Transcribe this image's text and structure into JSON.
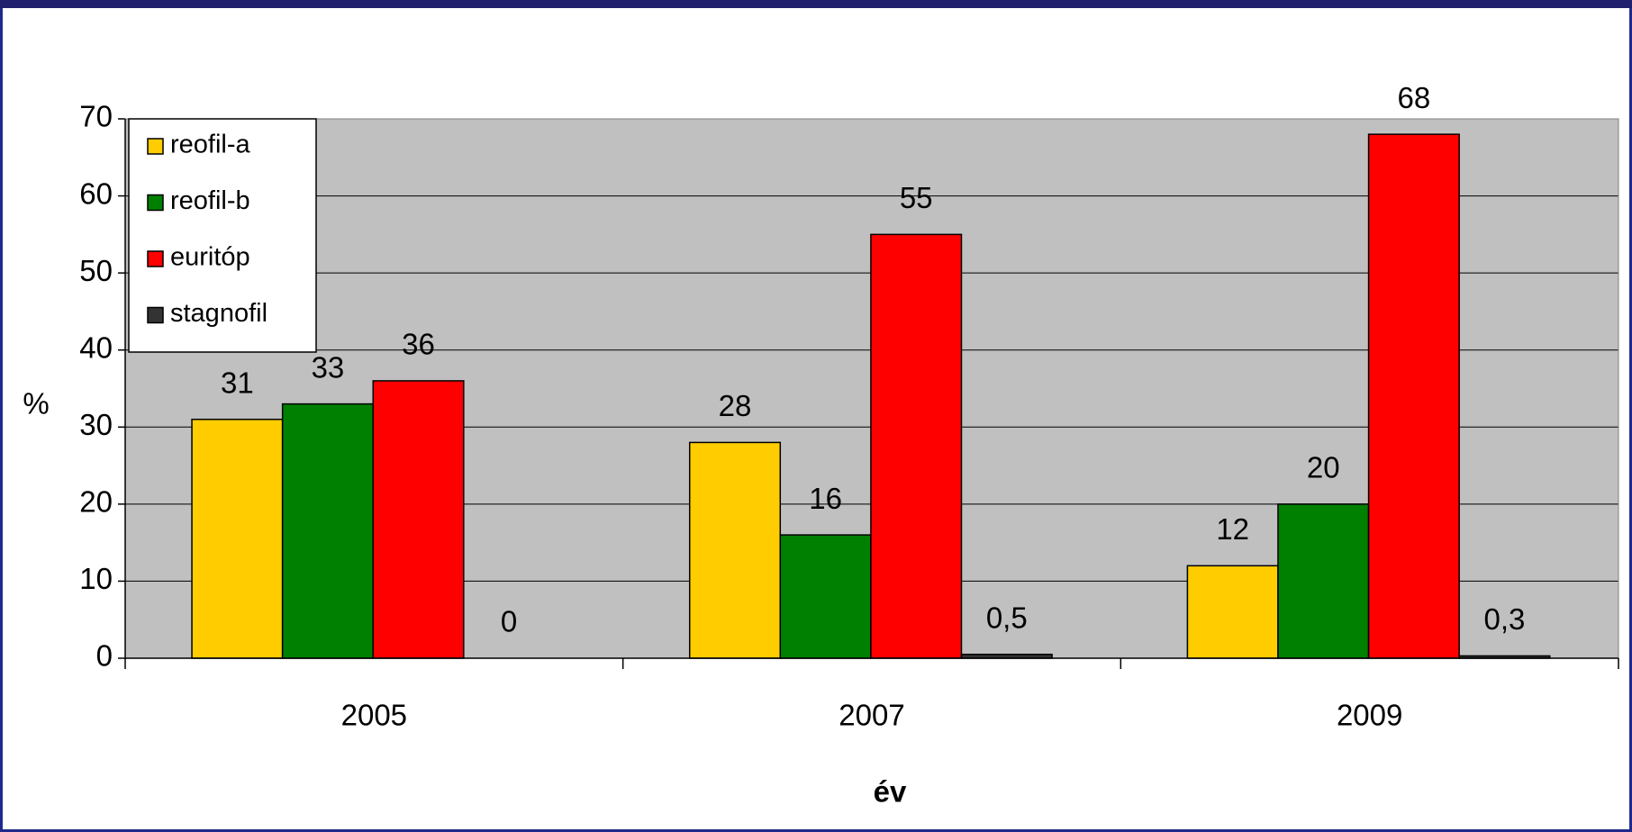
{
  "chart_data": {
    "type": "bar",
    "categories": [
      "2005",
      "2007",
      "2009"
    ],
    "series": [
      {
        "name": "reofil-a",
        "color": "#ffcc00",
        "values": [
          31,
          28,
          12
        ]
      },
      {
        "name": "reofil-b",
        "color": "#008000",
        "values": [
          33,
          16,
          20
        ]
      },
      {
        "name": "euritóp",
        "color": "#ff0000",
        "values": [
          36,
          55,
          68
        ]
      },
      {
        "name": "stagnofil",
        "color": "#333333",
        "values": [
          0,
          0.5,
          0.3
        ],
        "value_labels": [
          "0",
          "0,5",
          "0,3"
        ]
      }
    ],
    "ylabel": "%",
    "xlabel": "év",
    "ylim": [
      0,
      70
    ],
    "yticks": [
      0,
      10,
      20,
      30,
      40,
      50,
      60,
      70
    ],
    "grid": true,
    "legend": "upper left"
  }
}
